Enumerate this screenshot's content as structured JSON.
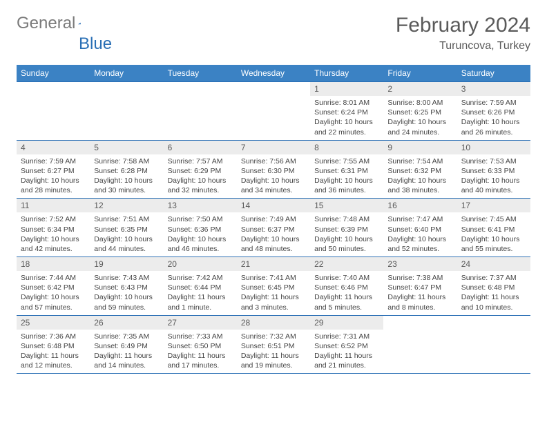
{
  "logo": {
    "word1": "General",
    "word2": "Blue"
  },
  "title": "February 2024",
  "location": "Turuncova, Turkey",
  "colors": {
    "header_bg": "#3b82c4",
    "border": "#2a6fb5",
    "daynum_bg": "#ececec",
    "text": "#5a5a5a"
  },
  "weekdays": [
    "Sunday",
    "Monday",
    "Tuesday",
    "Wednesday",
    "Thursday",
    "Friday",
    "Saturday"
  ],
  "weeks": [
    [
      null,
      null,
      null,
      null,
      {
        "n": "1",
        "sr": "8:01 AM",
        "ss": "6:24 PM",
        "dl": "10 hours and 22 minutes."
      },
      {
        "n": "2",
        "sr": "8:00 AM",
        "ss": "6:25 PM",
        "dl": "10 hours and 24 minutes."
      },
      {
        "n": "3",
        "sr": "7:59 AM",
        "ss": "6:26 PM",
        "dl": "10 hours and 26 minutes."
      }
    ],
    [
      {
        "n": "4",
        "sr": "7:59 AM",
        "ss": "6:27 PM",
        "dl": "10 hours and 28 minutes."
      },
      {
        "n": "5",
        "sr": "7:58 AM",
        "ss": "6:28 PM",
        "dl": "10 hours and 30 minutes."
      },
      {
        "n": "6",
        "sr": "7:57 AM",
        "ss": "6:29 PM",
        "dl": "10 hours and 32 minutes."
      },
      {
        "n": "7",
        "sr": "7:56 AM",
        "ss": "6:30 PM",
        "dl": "10 hours and 34 minutes."
      },
      {
        "n": "8",
        "sr": "7:55 AM",
        "ss": "6:31 PM",
        "dl": "10 hours and 36 minutes."
      },
      {
        "n": "9",
        "sr": "7:54 AM",
        "ss": "6:32 PM",
        "dl": "10 hours and 38 minutes."
      },
      {
        "n": "10",
        "sr": "7:53 AM",
        "ss": "6:33 PM",
        "dl": "10 hours and 40 minutes."
      }
    ],
    [
      {
        "n": "11",
        "sr": "7:52 AM",
        "ss": "6:34 PM",
        "dl": "10 hours and 42 minutes."
      },
      {
        "n": "12",
        "sr": "7:51 AM",
        "ss": "6:35 PM",
        "dl": "10 hours and 44 minutes."
      },
      {
        "n": "13",
        "sr": "7:50 AM",
        "ss": "6:36 PM",
        "dl": "10 hours and 46 minutes."
      },
      {
        "n": "14",
        "sr": "7:49 AM",
        "ss": "6:37 PM",
        "dl": "10 hours and 48 minutes."
      },
      {
        "n": "15",
        "sr": "7:48 AM",
        "ss": "6:39 PM",
        "dl": "10 hours and 50 minutes."
      },
      {
        "n": "16",
        "sr": "7:47 AM",
        "ss": "6:40 PM",
        "dl": "10 hours and 52 minutes."
      },
      {
        "n": "17",
        "sr": "7:45 AM",
        "ss": "6:41 PM",
        "dl": "10 hours and 55 minutes."
      }
    ],
    [
      {
        "n": "18",
        "sr": "7:44 AM",
        "ss": "6:42 PM",
        "dl": "10 hours and 57 minutes."
      },
      {
        "n": "19",
        "sr": "7:43 AM",
        "ss": "6:43 PM",
        "dl": "10 hours and 59 minutes."
      },
      {
        "n": "20",
        "sr": "7:42 AM",
        "ss": "6:44 PM",
        "dl": "11 hours and 1 minute."
      },
      {
        "n": "21",
        "sr": "7:41 AM",
        "ss": "6:45 PM",
        "dl": "11 hours and 3 minutes."
      },
      {
        "n": "22",
        "sr": "7:40 AM",
        "ss": "6:46 PM",
        "dl": "11 hours and 5 minutes."
      },
      {
        "n": "23",
        "sr": "7:38 AM",
        "ss": "6:47 PM",
        "dl": "11 hours and 8 minutes."
      },
      {
        "n": "24",
        "sr": "7:37 AM",
        "ss": "6:48 PM",
        "dl": "11 hours and 10 minutes."
      }
    ],
    [
      {
        "n": "25",
        "sr": "7:36 AM",
        "ss": "6:48 PM",
        "dl": "11 hours and 12 minutes."
      },
      {
        "n": "26",
        "sr": "7:35 AM",
        "ss": "6:49 PM",
        "dl": "11 hours and 14 minutes."
      },
      {
        "n": "27",
        "sr": "7:33 AM",
        "ss": "6:50 PM",
        "dl": "11 hours and 17 minutes."
      },
      {
        "n": "28",
        "sr": "7:32 AM",
        "ss": "6:51 PM",
        "dl": "11 hours and 19 minutes."
      },
      {
        "n": "29",
        "sr": "7:31 AM",
        "ss": "6:52 PM",
        "dl": "11 hours and 21 minutes."
      },
      null,
      null
    ]
  ],
  "labels": {
    "sunrise": "Sunrise: ",
    "sunset": "Sunset: ",
    "daylight": "Daylight: "
  }
}
